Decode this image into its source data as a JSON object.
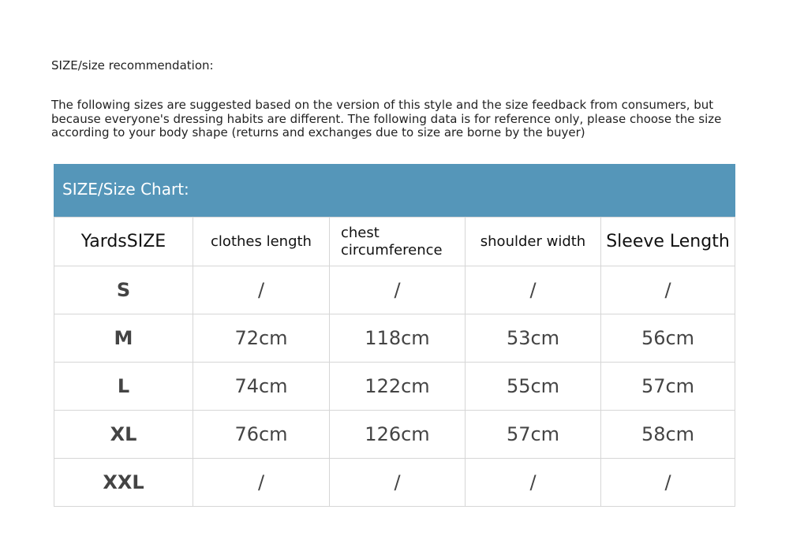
{
  "intro": {
    "heading": "SIZE/size recommendation:",
    "text": "The following sizes are suggested based on the version of this style and the size feedback from consumers, but because everyone's dressing habits are different. The following data is for reference only, please choose the size according to your body shape (returns and exchanges due to size are borne by the buyer)"
  },
  "chart": {
    "title": "SIZE/Size Chart:",
    "header_color": "#5596b9",
    "columns": [
      "YardsSIZE",
      "clothes length",
      "chest circumference",
      "shoulder width",
      "Sleeve Length"
    ],
    "rows": [
      [
        "S",
        "/",
        "/",
        "/",
        "/"
      ],
      [
        "M",
        "72cm",
        "118cm",
        "53cm",
        "56cm"
      ],
      [
        "L",
        "74cm",
        "122cm",
        "55cm",
        "57cm"
      ],
      [
        "XL",
        "76cm",
        "126cm",
        "57cm",
        "58cm"
      ],
      [
        "XXL",
        "/",
        "/",
        "/",
        "/"
      ]
    ]
  }
}
